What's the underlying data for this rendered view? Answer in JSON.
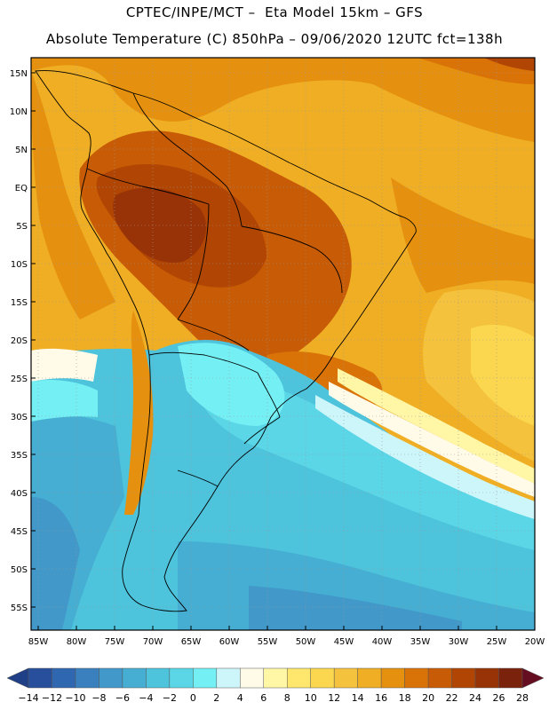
{
  "header": {
    "line1": "CPTEC/INPE/MCT –  Eta Model 15km – GFS",
    "line2": "Absolute Temperature (C) 850hPa – 09/06/2020 12UTC fct=138h"
  },
  "map": {
    "lat_labels": [
      "15N",
      "10N",
      "5N",
      "EQ",
      "5S",
      "10S",
      "15S",
      "20S",
      "25S",
      "30S",
      "35S",
      "40S",
      "45S",
      "50S",
      "55S"
    ],
    "lon_labels": [
      "85W",
      "80W",
      "75W",
      "70W",
      "65W",
      "60W",
      "55W",
      "50W",
      "45W",
      "40W",
      "35W",
      "30W",
      "25W",
      "20W"
    ]
  },
  "legend": {
    "labels": [
      "−14",
      "−12",
      "−10",
      "−8",
      "−6",
      "−4",
      "−2",
      "0",
      "2",
      "4",
      "6",
      "8",
      "10",
      "12",
      "14",
      "16",
      "18",
      "20",
      "22",
      "24",
      "26",
      "28"
    ],
    "colors": [
      "#1f3f86",
      "#274f9c",
      "#2f67b0",
      "#3a80bf",
      "#4198c9",
      "#45aed2",
      "#4dc3dc",
      "#5ad6e6",
      "#74eff4",
      "#cdf6fb",
      "#fffbe8",
      "#fff7a6",
      "#ffe76e",
      "#fbd64f",
      "#f4c23c",
      "#efae24",
      "#e5900e",
      "#d97307",
      "#c85b05",
      "#b04504",
      "#983307",
      "#7b220d",
      "#650e22"
    ]
  }
}
